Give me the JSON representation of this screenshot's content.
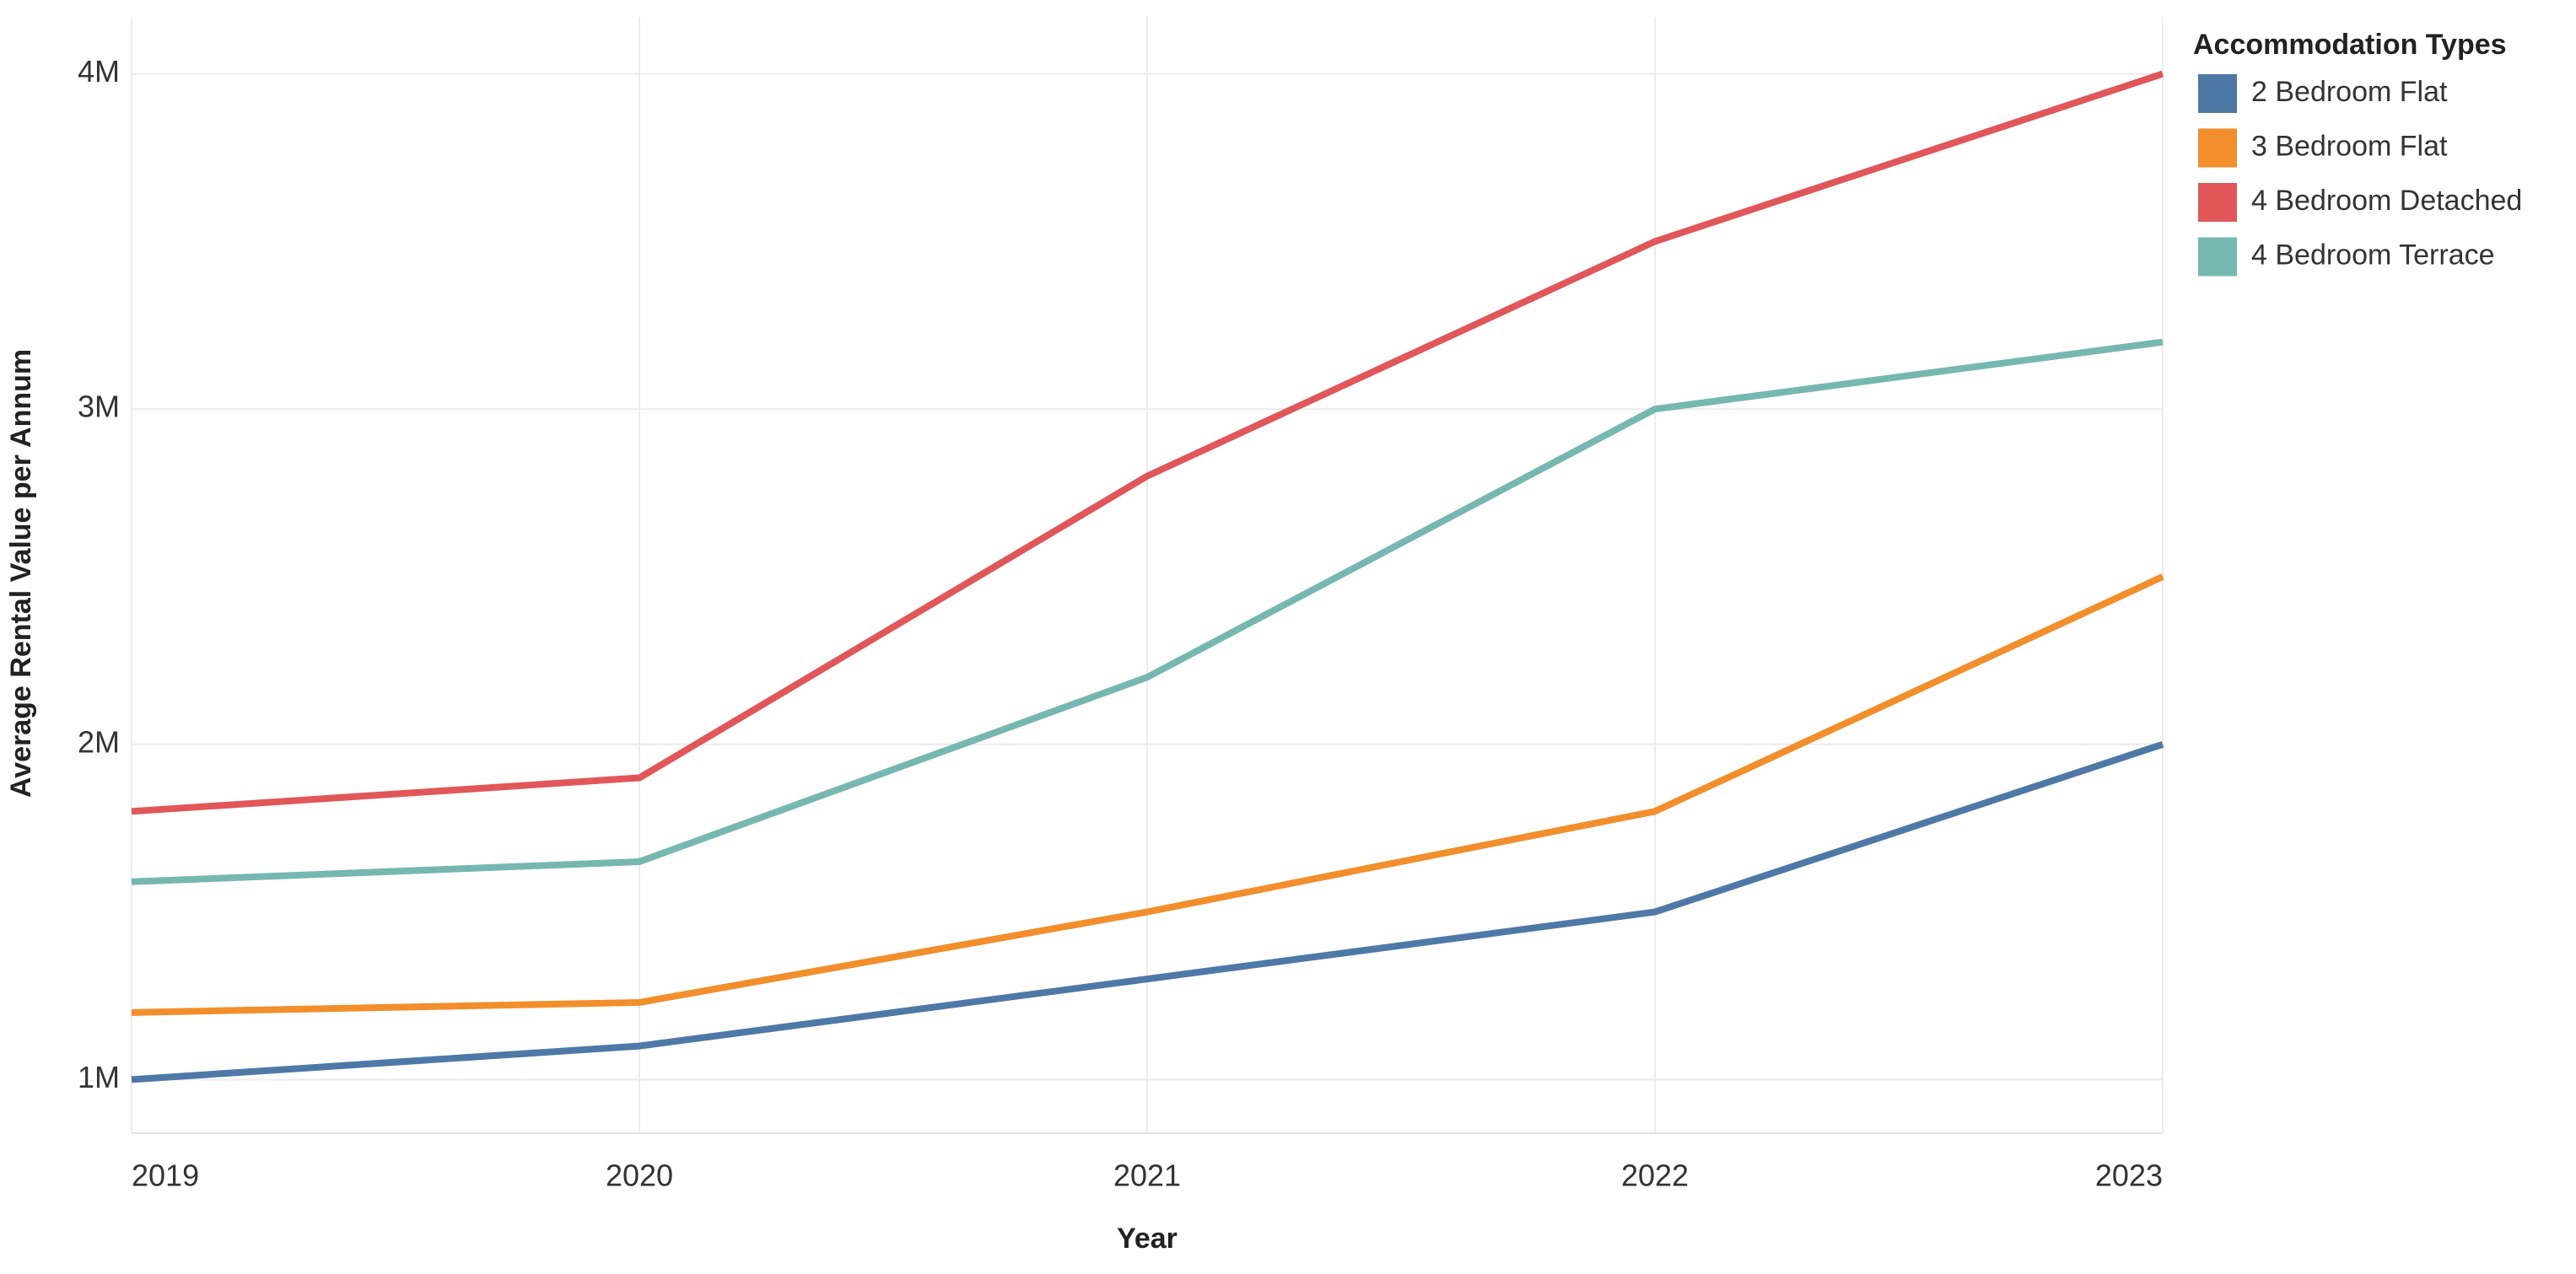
{
  "chart_data": {
    "type": "line",
    "x_label": "Year",
    "y_label": "Average Rental Value per Annum",
    "legend_title": "Accommodation Types",
    "legend_position": "top-right",
    "grid": true,
    "x": [
      2019,
      2020,
      2021,
      2022,
      2023
    ],
    "xlim": [
      2019,
      2023
    ],
    "xticks": [
      2019,
      2020,
      2021,
      2022,
      2023
    ],
    "ylim": [
      840000,
      4170000
    ],
    "yticks": [
      {
        "value": 1000000,
        "label": "1M"
      },
      {
        "value": 2000000,
        "label": "2M"
      },
      {
        "value": 3000000,
        "label": "3M"
      },
      {
        "value": 4000000,
        "label": "4M"
      }
    ],
    "series": [
      {
        "name": "2 Bedroom Flat",
        "color": "#4e79a7",
        "values": [
          1000000,
          1100000,
          1300000,
          1500000,
          2000000
        ]
      },
      {
        "name": "3 Bedroom Flat",
        "color": "#f28e2b",
        "values": [
          1200000,
          1230000,
          1500000,
          1800000,
          2500000
        ]
      },
      {
        "name": "4 Bedroom Detached",
        "color": "#e15759",
        "values": [
          1800000,
          1900000,
          2800000,
          3500000,
          4000000
        ]
      },
      {
        "name": "4 Bedroom Terrace",
        "color": "#76b7b2",
        "values": [
          1590000,
          1650000,
          2200000,
          3000000,
          3200000
        ]
      }
    ]
  }
}
